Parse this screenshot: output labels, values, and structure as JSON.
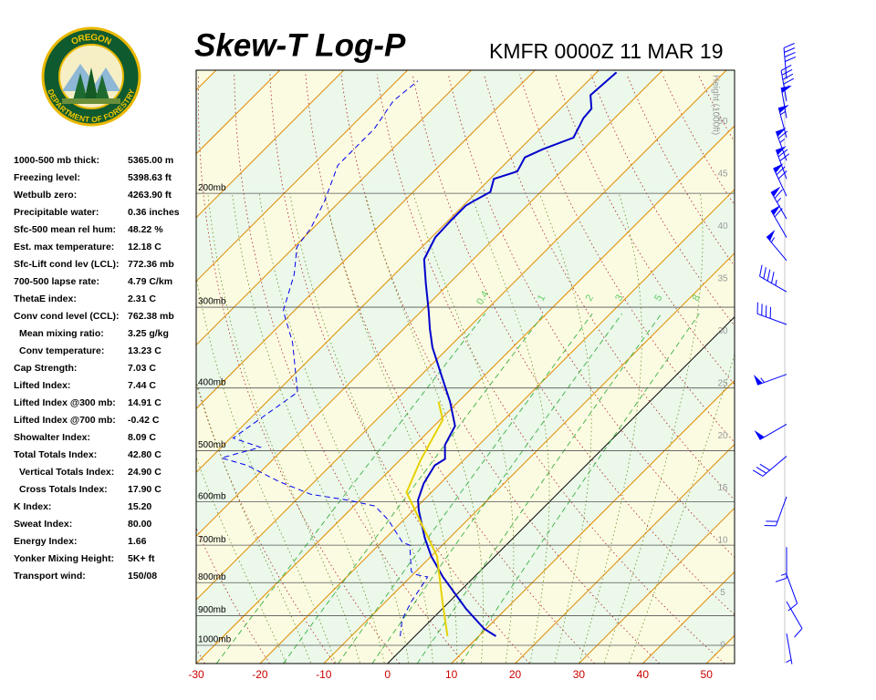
{
  "logo": {
    "top": "OREGON",
    "bottom": "DEPARTMENT OF FORESTRY"
  },
  "stats": [
    [
      "1000-500 mb thick:",
      "5365.00 m"
    ],
    [
      "Freezing level:",
      "5398.63 ft"
    ],
    [
      "Wetbulb zero:",
      "4263.90 ft"
    ],
    [
      "Precipitable water:",
      "0.36 inches"
    ],
    [
      "Sfc-500 mean rel hum:",
      "48.22 %"
    ],
    [
      "Est. max temperature:",
      "12.18 C"
    ],
    [
      "Sfc-Lift cond lev (LCL):",
      "772.36 mb"
    ],
    [
      "700-500 lapse rate:",
      "4.79 C/km"
    ],
    [
      "ThetaE index:",
      "2.31 C"
    ],
    [
      "Conv cond level (CCL):",
      "762.38 mb"
    ],
    [
      "Mean mixing ratio:",
      "3.25 g/kg"
    ],
    [
      "Conv temperature:",
      "13.23 C"
    ],
    [
      "Cap Strength:",
      "7.03 C"
    ],
    [
      "Lifted Index:",
      "7.44 C"
    ],
    [
      "Lifted Index @300 mb:",
      "14.91 C"
    ],
    [
      "Lifted Index @700 mb:",
      "-0.42 C"
    ],
    [
      "Showalter Index:",
      "8.09 C"
    ],
    [
      "Total Totals Index:",
      "42.80 C"
    ],
    [
      "Vertical Totals Index:",
      "24.90 C"
    ],
    [
      "Cross Totals Index:",
      "17.90 C"
    ],
    [
      "K Index:",
      "15.20"
    ],
    [
      "Sweat Index:",
      "80.00"
    ],
    [
      "Energy Index:",
      "1.66"
    ],
    [
      "Yonker Mixing Height:",
      "5K+ ft"
    ],
    [
      "Transport wind:",
      "150/08"
    ]
  ],
  "chart_data": {
    "type": "skewt",
    "title": "Skew-T Log-P",
    "subtitle": "KMFR 0000Z 11 MAR 19",
    "xlim": [
      -30,
      54.4
    ],
    "xticks": [
      -30,
      -20,
      -10,
      0,
      10,
      20,
      30,
      40,
      50
    ],
    "ylim": [
      1067,
      129
    ],
    "y_scale": "log",
    "yticks": [
      {
        "value": 1000,
        "label": "1000mb"
      },
      {
        "value": 900,
        "label": "900mb"
      },
      {
        "value": 800,
        "label": "800mb"
      },
      {
        "value": 700,
        "label": "700mb"
      },
      {
        "value": 600,
        "label": "600mb"
      },
      {
        "value": 500,
        "label": "500mb"
      },
      {
        "value": 400,
        "label": "400mb"
      },
      {
        "value": 300,
        "label": "300mb"
      },
      {
        "value": 200,
        "label": "200mb"
      }
    ],
    "y2label": "Height (1000ft)",
    "y2lim": [
      -1.74,
      54.9
    ],
    "y2ticks": [
      0,
      5,
      10,
      15,
      20,
      25,
      30,
      35,
      40,
      45,
      50
    ],
    "mixing_ratio_lines": [
      0.4,
      1,
      2,
      3,
      5,
      8
    ],
    "series": [
      {
        "color": "#0000cc",
        "line_style": "solid",
        "pressure": [
          968,
          943,
          878,
          784,
          728,
          682,
          619,
          596,
          562,
          527,
          515,
          490,
          458,
          420,
          381,
          346,
          324,
          304,
          276,
          253,
          234,
          220,
          209,
          205,
          199,
          190,
          185,
          176,
          171,
          164,
          153,
          148,
          141,
          130
        ],
        "values": [
          12.7,
          9.7,
          3.7,
          -4.9,
          -10.0,
          -13.9,
          -19.1,
          -20.9,
          -22.6,
          -23.7,
          -23.1,
          -25.3,
          -26.7,
          -31.3,
          -37.0,
          -42.6,
          -45.9,
          -48.9,
          -53.6,
          -57.7,
          -59.4,
          -59.6,
          -59.6,
          -59.0,
          -57.9,
          -59.4,
          -56.9,
          -57.9,
          -56.4,
          -53.4,
          -54.9,
          -55.1,
          -57.4,
          -56.9
        ]
      },
      {
        "color": "#0000ee",
        "line_style": "dashed",
        "pressure": [
          968,
          913,
          856,
          815,
          784,
          777,
          769,
          700,
          693,
          640,
          609,
          596,
          584,
          558,
          527,
          513,
          494,
          478,
          406,
          340,
          304,
          267,
          242,
          227,
          206,
          181,
          169,
          159,
          144,
          134
        ],
        "values": [
          -2.3,
          -4.6,
          -6.0,
          -6.7,
          -7.3,
          -9.6,
          -10.7,
          -15.1,
          -16.7,
          -22.4,
          -26.7,
          -32.0,
          -38.6,
          -45.6,
          -53.1,
          -58.3,
          -53.9,
          -59.6,
          -56.7,
          -65.3,
          -71.7,
          -75.7,
          -79.6,
          -80.3,
          -82.4,
          -86.0,
          -86.0,
          -86.0,
          -87.4,
          -86.7
        ]
      },
      {
        "color": "#e6d200",
        "line_style": "solid",
        "pressure": [
          968,
          856,
          728,
          580,
          518,
          448,
          420
        ],
        "values": [
          5.1,
          -1.1,
          -9.1,
          -23.9,
          -26.7,
          -29.6,
          -33.1
        ]
      }
    ],
    "winds": {
      "color": "#0000ff",
      "pressure": [
        133,
        144,
        153,
        164,
        178,
        190,
        202,
        219,
        234,
        254,
        284,
        319,
        381,
        455,
        510,
        589,
        705,
        777,
        856,
        959
      ],
      "direction": [
        355,
        350,
        350,
        345,
        340,
        340,
        335,
        330,
        330,
        320,
        300,
        290,
        250,
        240,
        230,
        200,
        180,
        160,
        150,
        170
      ],
      "speed": [
        40,
        45,
        50,
        55,
        65,
        70,
        70,
        65,
        60,
        55,
        45,
        40,
        55,
        50,
        30,
        20,
        15,
        10,
        8,
        5
      ]
    }
  }
}
